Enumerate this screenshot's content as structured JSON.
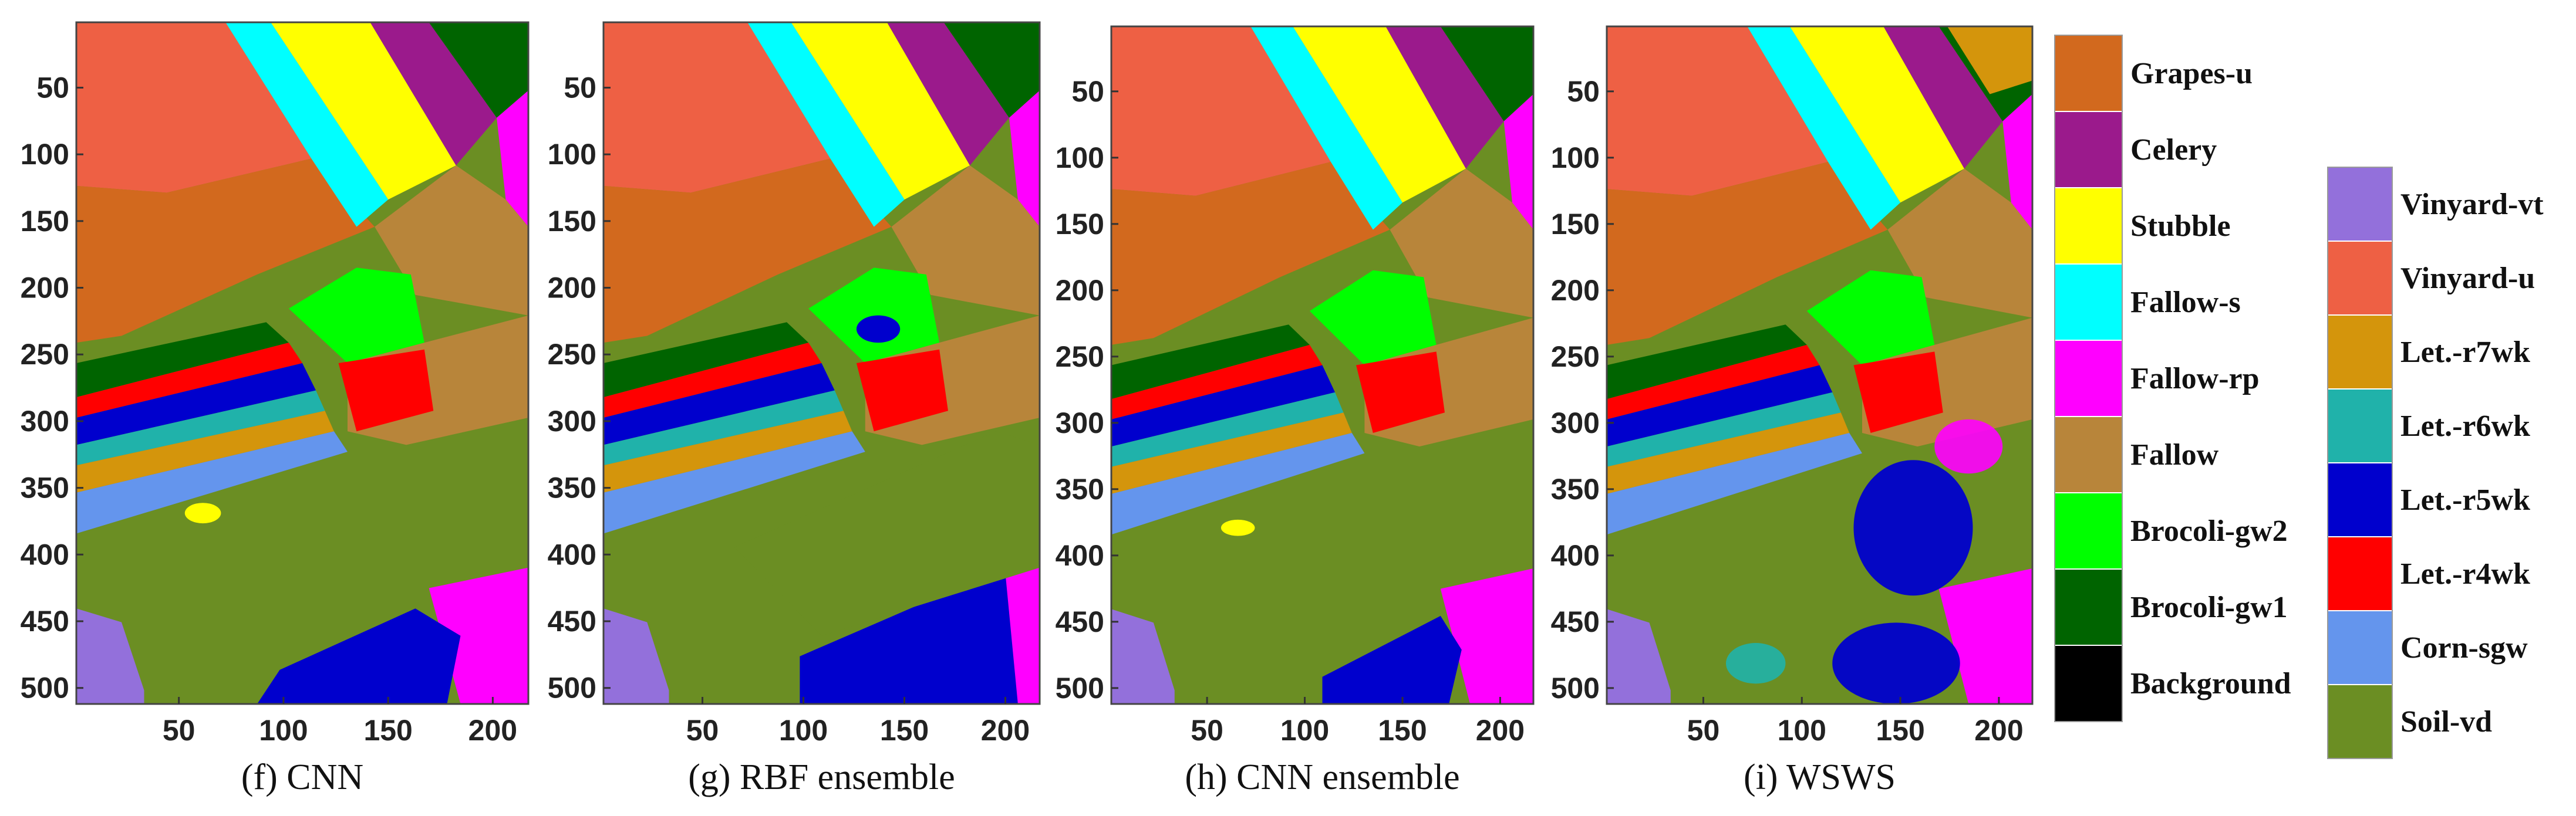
{
  "figure": {
    "axis": {
      "x_ticks": [
        "50",
        "100",
        "150",
        "200"
      ],
      "x_tick_values": [
        50,
        100,
        150,
        200
      ],
      "y_ticks": [
        "50",
        "100",
        "150",
        "200",
        "250",
        "300",
        "350",
        "400",
        "450",
        "500"
      ],
      "y_tick_values": [
        50,
        100,
        150,
        200,
        250,
        300,
        350,
        400,
        450,
        500
      ],
      "x_range": [
        1,
        217
      ],
      "y_range": [
        1,
        512
      ]
    },
    "panels": [
      {
        "caption": "(f) CNN",
        "method": "cnn"
      },
      {
        "caption": "(g) RBF ensemble",
        "method": "rbf"
      },
      {
        "caption": "(h) CNN ensemble",
        "method": "cnn-ens"
      },
      {
        "caption": "(i) WSWS",
        "method": "wsws"
      }
    ]
  },
  "legend": {
    "column1": [
      {
        "label": "Grapes-u",
        "color": "#D2691E"
      },
      {
        "label": "Celery",
        "color": "#9B1A8C"
      },
      {
        "label": "Stubble",
        "color": "#FFFF00"
      },
      {
        "label": "Fallow-s",
        "color": "#00FFFF"
      },
      {
        "label": "Fallow-rp",
        "color": "#FF00FF"
      },
      {
        "label": "Fallow",
        "color": "#B8853A"
      },
      {
        "label": "Brocoli-gw2",
        "color": "#00FF00"
      },
      {
        "label": "Brocoli-gw1",
        "color": "#006400"
      },
      {
        "label": "Background",
        "color": "#000000"
      }
    ],
    "column2": [
      {
        "label": "Vinyard-vt",
        "color": "#9370DB"
      },
      {
        "label": "Vinyard-u",
        "color": "#EE6044"
      },
      {
        "label": "Let.-r7wk",
        "color": "#D4950C"
      },
      {
        "label": "Let.-r6wk",
        "color": "#20B2AA"
      },
      {
        "label": "Let.-r5wk",
        "color": "#0000CD"
      },
      {
        "label": "Let.-r4wk",
        "color": "#FF0000"
      },
      {
        "label": "Corn-sgw",
        "color": "#6495ED"
      },
      {
        "label": "Soil-vd",
        "color": "#6B8E23"
      }
    ]
  }
}
